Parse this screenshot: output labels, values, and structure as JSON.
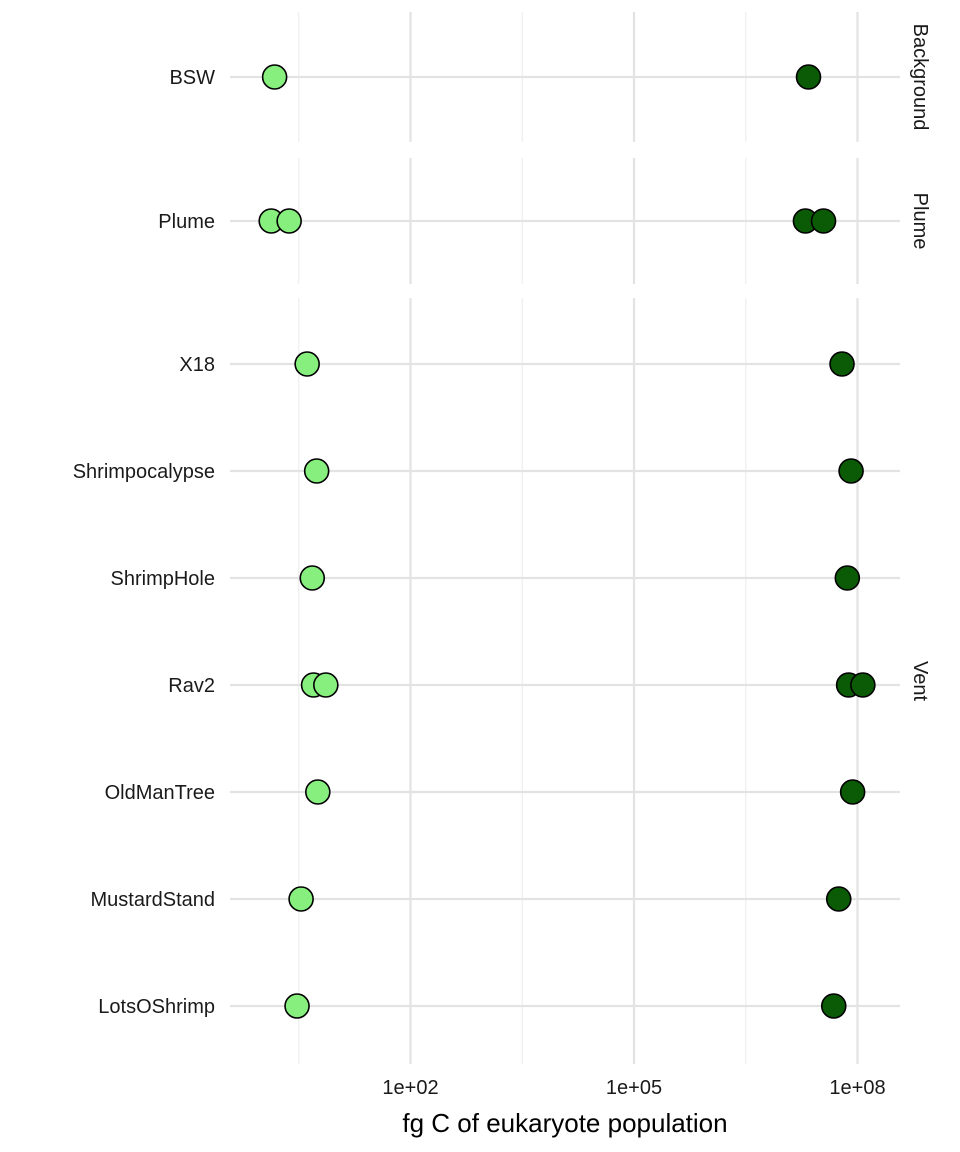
{
  "chart_data": {
    "type": "scatter",
    "xlabel": "fg C of eukaryote population",
    "x_scale": "log10",
    "xlim": [
      0.55,
      1000000000
    ],
    "x_ticks": [
      {
        "value": 100,
        "label": "1e+02"
      },
      {
        "value": 100000,
        "label": "1e+05"
      },
      {
        "value": 100000000,
        "label": "1e+08"
      }
    ],
    "x_minor_gridlines": [
      3.16,
      3162,
      3162000
    ],
    "grid": true,
    "colors": {
      "light": "#86ef7d",
      "dark": "#0b5a06",
      "outline": "#000000"
    },
    "facets": [
      {
        "label": "Background",
        "rows": [
          {
            "site": "BSW",
            "points": [
              {
                "x": 1.5,
                "color": "light"
              },
              {
                "x": 22000000,
                "color": "dark"
              }
            ]
          }
        ]
      },
      {
        "label": "Plume",
        "rows": [
          {
            "site": "Plume",
            "points": [
              {
                "x": 1.35,
                "color": "light"
              },
              {
                "x": 2.35,
                "color": "light"
              },
              {
                "x": 20000000,
                "color": "dark"
              },
              {
                "x": 35000000,
                "color": "dark"
              }
            ]
          }
        ]
      },
      {
        "label": "Vent",
        "rows": [
          {
            "site": "X18",
            "points": [
              {
                "x": 4.1,
                "color": "light"
              },
              {
                "x": 62000000,
                "color": "dark"
              }
            ]
          },
          {
            "site": "Shrimpocalypse",
            "points": [
              {
                "x": 5.5,
                "color": "light"
              },
              {
                "x": 82000000,
                "color": "dark"
              }
            ]
          },
          {
            "site": "ShrimpHole",
            "points": [
              {
                "x": 4.8,
                "color": "light"
              },
              {
                "x": 73000000,
                "color": "dark"
              }
            ]
          },
          {
            "site": "Rav2",
            "points": [
              {
                "x": 5.0,
                "color": "light"
              },
              {
                "x": 7.3,
                "color": "light"
              },
              {
                "x": 76000000,
                "color": "dark"
              },
              {
                "x": 118000000,
                "color": "dark"
              }
            ]
          },
          {
            "site": "OldManTree",
            "points": [
              {
                "x": 5.7,
                "color": "light"
              },
              {
                "x": 86000000,
                "color": "dark"
              }
            ]
          },
          {
            "site": "MustardStand",
            "points": [
              {
                "x": 3.4,
                "color": "light"
              },
              {
                "x": 56000000,
                "color": "dark"
              }
            ]
          },
          {
            "site": "LotsOShrimp",
            "points": [
              {
                "x": 3.0,
                "color": "light"
              },
              {
                "x": 48000000,
                "color": "dark"
              }
            ]
          }
        ]
      }
    ]
  }
}
